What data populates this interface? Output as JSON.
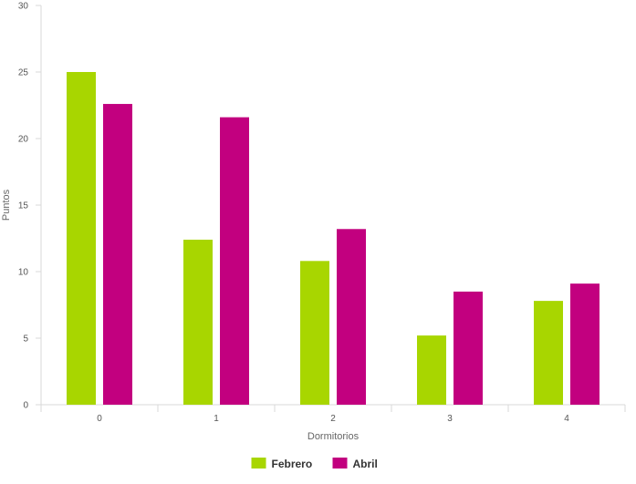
{
  "chart_data": {
    "type": "bar",
    "title": "",
    "xlabel": "Dormitorios",
    "ylabel": "Puntos",
    "categories": [
      "0",
      "1",
      "2",
      "3",
      "4"
    ],
    "series": [
      {
        "name": "Febrero",
        "color": "#a8d600",
        "values": [
          25,
          12.4,
          10.8,
          5.2,
          7.8
        ]
      },
      {
        "name": "Abril",
        "color": "#c2007f",
        "values": [
          22.6,
          21.6,
          13.2,
          8.5,
          9.1
        ]
      }
    ],
    "ylim": [
      0,
      30
    ],
    "yticks": [
      "0",
      "5",
      "10",
      "15",
      "20",
      "25",
      "30"
    ],
    "grid": false,
    "legend_position": "bottom-center"
  }
}
